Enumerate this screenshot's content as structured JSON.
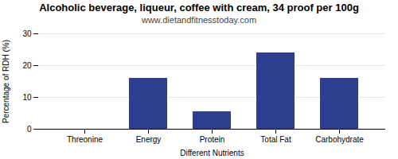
{
  "chart_data": {
    "type": "bar",
    "title": "Alcoholic beverage, liqueur, coffee with cream, 34 proof per 100g",
    "subtitle": "www.dietandfitnesstoday.com",
    "xlabel": "Different Nutrients",
    "ylabel": "Percentage of RDH (%)",
    "categories": [
      "Threonine",
      "Energy",
      "Protein",
      "Total Fat",
      "Carbohydrate"
    ],
    "values": [
      0,
      16,
      5.5,
      24,
      16
    ],
    "color": "#2e3f8f",
    "ylim": [
      0,
      30
    ],
    "yticks": [
      0,
      10,
      20,
      30
    ],
    "grid": true
  }
}
